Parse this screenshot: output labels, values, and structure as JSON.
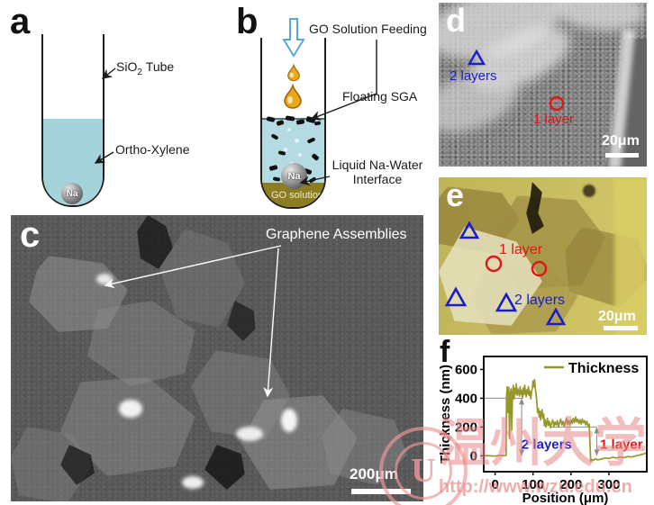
{
  "panels": {
    "a": {
      "label": "a",
      "tube_label_pre": "SiO",
      "tube_label_sub": "2",
      "tube_label_post": "Tube",
      "liquid_label": "Ortho-Xylene",
      "ball_label": "Na"
    },
    "b": {
      "label": "b",
      "feeding_label": "GO Solution Feeding",
      "floating_label": "Floating SGA",
      "interface_label_line1": "Liquid Na-Water",
      "interface_label_line2": "Interface",
      "go_solution_label": "GO solution",
      "ball_label": "Na"
    },
    "c": {
      "label": "c",
      "annotation": "Graphene Assemblies",
      "scalebar_label": "200μm"
    },
    "d": {
      "label": "d",
      "two_layers": "2 layers",
      "one_layer": "1 layer",
      "scalebar_label": "20μm"
    },
    "e": {
      "label": "e",
      "one_layer": "1 layer",
      "two_layers": "2 layers",
      "scalebar_label": "20μm"
    },
    "f": {
      "label": "f"
    }
  },
  "chart_data": {
    "type": "line",
    "xlabel": "Position (μm)",
    "ylabel": "Thickness (nm)",
    "legend": [
      "Thickness"
    ],
    "legend_position": "top-right",
    "xlim": [
      -30,
      400
    ],
    "ylim": [
      -110,
      690
    ],
    "xticks": [
      0,
      100,
      200,
      300
    ],
    "yticks": [
      0,
      200,
      400,
      600
    ],
    "line_color": "#96962a",
    "guide_color": "#8c8c8c",
    "series": [
      {
        "name": "Thickness",
        "x": [
          -30,
          -15,
          0,
          10,
          20,
          27,
          29,
          30,
          32,
          34,
          36,
          38,
          40,
          42,
          44,
          46,
          48,
          50,
          52,
          54,
          56,
          58,
          60,
          62,
          64,
          66,
          68,
          70,
          72,
          74,
          76,
          78,
          80,
          82,
          84,
          86,
          88,
          90,
          92,
          94,
          96,
          98,
          100,
          102,
          104,
          106,
          108,
          110,
          112,
          114,
          116,
          118,
          120,
          122,
          124,
          126,
          128,
          130,
          132,
          134,
          136,
          138,
          140,
          143,
          146,
          149,
          152,
          155,
          158,
          161,
          164,
          167,
          170,
          173,
          176,
          179,
          182,
          185,
          188,
          191,
          194,
          197,
          200,
          203,
          206,
          209,
          212,
          215,
          218,
          221,
          224,
          227,
          230,
          233,
          236,
          239,
          242,
          245,
          248,
          250,
          252,
          255,
          260,
          265,
          270,
          280,
          290,
          300,
          310,
          320,
          330,
          340,
          350,
          360,
          370,
          380,
          390,
          400
        ],
        "y": [
          2,
          0,
          -2,
          3,
          1,
          2,
          5,
          415,
          480,
          300,
          475,
          120,
          430,
          465,
          180,
          440,
          490,
          395,
          470,
          430,
          500,
          420,
          465,
          440,
          415,
          480,
          430,
          455,
          400,
          470,
          425,
          490,
          440,
          410,
          460,
          430,
          480,
          420,
          450,
          395,
          440,
          470,
          520,
          480,
          530,
          470,
          430,
          380,
          300,
          330,
          270,
          310,
          250,
          300,
          320,
          260,
          290,
          210,
          250,
          200,
          230,
          260,
          210,
          240,
          195,
          225,
          250,
          205,
          235,
          215,
          245,
          200,
          230,
          255,
          215,
          240,
          205,
          235,
          260,
          220,
          245,
          215,
          250,
          225,
          260,
          230,
          270,
          235,
          255,
          225,
          250,
          220,
          255,
          230,
          245,
          215,
          240,
          205,
          220,
          100,
          -40,
          -25,
          -30,
          -20,
          -28,
          -22,
          -15,
          -18,
          -10,
          -15,
          -8,
          -12,
          -5,
          -8,
          0,
          5,
          12,
          22
        ]
      }
    ],
    "annotations": [
      {
        "text": "2 layers",
        "color": "#1c1ccf",
        "x": 136,
        "y": 48
      },
      {
        "text": "1 layer",
        "color": "#e01515",
        "x": 333,
        "y": 48
      }
    ],
    "guides": [
      {
        "type": "hline",
        "y": 400,
        "x1": -30,
        "x2": 70
      },
      {
        "type": "varrow",
        "x": 70,
        "y1": 0,
        "y2": 400
      },
      {
        "type": "hline",
        "y": 200,
        "x1": 148,
        "x2": 268
      },
      {
        "type": "varrow",
        "x": 268,
        "y1": 0,
        "y2": 200
      }
    ]
  },
  "watermark": {
    "cn_text": "温州大学",
    "url_text": "http://www.wzu.edu.cn",
    "seal_letter": "U"
  },
  "colors": {
    "blue_marker": "#1c1ccf",
    "red_marker": "#e01515",
    "chart_line": "#96962a",
    "watermark_pink": "#e89494",
    "water_blue": "#a5d3dc",
    "go_olive": "#8d7d22",
    "feed_arrow_blue": "#58a8d8"
  }
}
